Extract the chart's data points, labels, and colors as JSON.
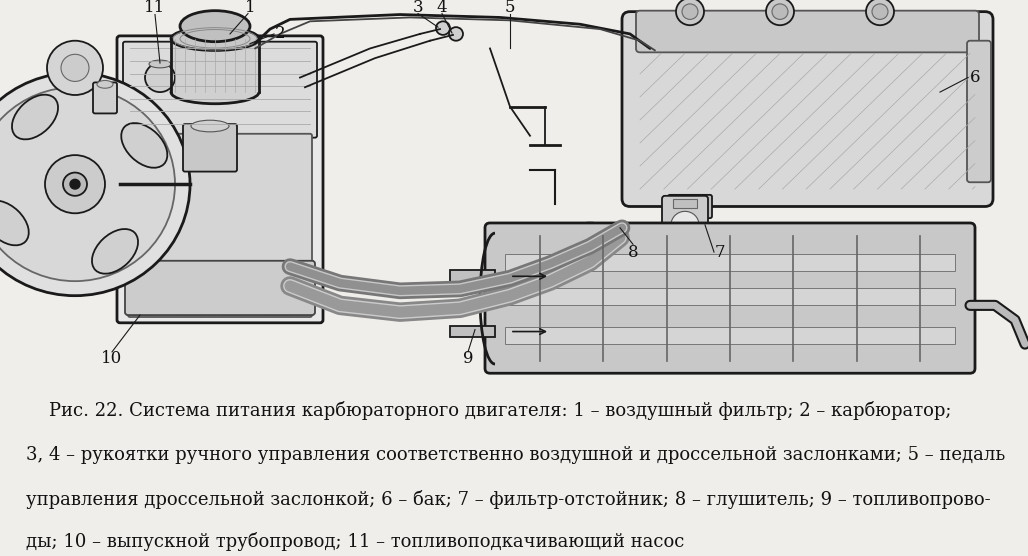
{
  "background_color": "#f0eeea",
  "caption_line1": "    Рис. 22. Система питания карбюраторного двигателя: 1 – воздушный фильтр; 2 – карбюратор;",
  "caption_line2": "3, 4 – рукоятки ручного управления соответственно воздушной и дроссельной заслонками; 5 – педаль",
  "caption_line3": "управления дроссельной заслонкой; 6 – бак; 7 – фильтр-отстойник; 8 – глушитель; 9 – топливопрово-",
  "caption_line4": "ды; 10 – выпускной трубопровод; 11 – топливоподкачивающий насос",
  "caption_fontsize": 13.0,
  "fig_width": 10.28,
  "fig_height": 5.56,
  "dpi": 100
}
